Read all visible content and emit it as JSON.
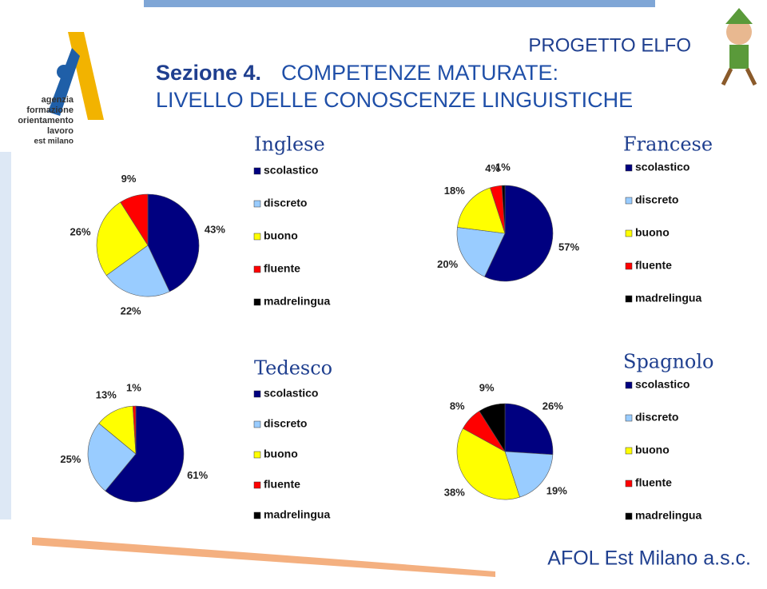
{
  "header": {
    "project": "PROGETTO ELFO",
    "section": "Sezione 4.",
    "title_1": "COMPETENZE MATURATE:",
    "title_2": "LIVELLO DELLE CONOSCENZE LINGUISTICHE"
  },
  "logo": {
    "lines": [
      "agenzia",
      "formazione",
      "orientamento",
      "lavoro",
      "est milano"
    ]
  },
  "footer": "AFOL Est Milano a.s.c.",
  "chart_data": [
    {
      "type": "pie",
      "title": "Inglese",
      "categories": [
        "scolastico",
        "discreto",
        "buono",
        "fluente",
        "madrelingua"
      ],
      "colors": [
        "#000080",
        "#99ccff",
        "#ffff00",
        "#ff0000",
        "#000000"
      ],
      "values": [
        43,
        22,
        26,
        9,
        0
      ],
      "value_labels": [
        "43%",
        "22%",
        "26%",
        "9%",
        null
      ]
    },
    {
      "type": "pie",
      "title": "Francese",
      "categories": [
        "scolastico",
        "discreto",
        "buono",
        "fluente",
        "madrelingua"
      ],
      "colors": [
        "#000080",
        "#99ccff",
        "#ffff00",
        "#ff0000",
        "#000000"
      ],
      "values": [
        57,
        20,
        18,
        4,
        1
      ],
      "value_labels": [
        "57%",
        "20%",
        "18%",
        "4%",
        "1%"
      ]
    },
    {
      "type": "pie",
      "title": "Tedesco",
      "categories": [
        "scolastico",
        "discreto",
        "buono",
        "fluente",
        "madrelingua"
      ],
      "colors": [
        "#000080",
        "#99ccff",
        "#ffff00",
        "#ff0000",
        "#000000"
      ],
      "values": [
        61,
        25,
        13,
        1,
        0
      ],
      "value_labels": [
        "61%",
        "25%",
        "13%",
        "1%",
        null
      ]
    },
    {
      "type": "pie",
      "title": "Spagnolo",
      "categories": [
        "scolastico",
        "discreto",
        "buono",
        "fluente",
        "madrelingua"
      ],
      "colors": [
        "#000080",
        "#99ccff",
        "#ffff00",
        "#ff0000",
        "#000000"
      ],
      "values": [
        26,
        19,
        38,
        8,
        9
      ],
      "value_labels": [
        "26%",
        "19%",
        "38%",
        "8%",
        "9%"
      ]
    }
  ]
}
